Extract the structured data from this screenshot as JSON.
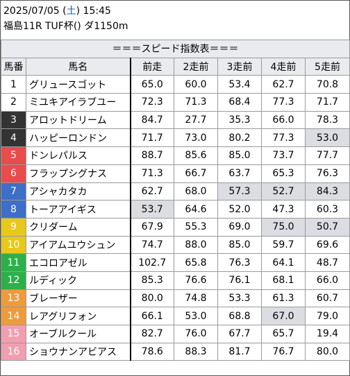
{
  "header": {
    "date": "2025/07/05",
    "weekday": "土",
    "time": "15:45",
    "race_info": "福島11R TUF杯() ダ1150m"
  },
  "table": {
    "title": "＝＝＝スピード指数表＝＝＝",
    "columns": [
      "馬番",
      "馬名",
      "前走",
      "2走前",
      "3走前",
      "4走前",
      "5走前"
    ],
    "rows": [
      {
        "num": "1",
        "name": "グリュースゴット",
        "values": [
          "65.0",
          "60.0",
          "53.4",
          "62.7",
          "70.8"
        ],
        "highlight": [],
        "color": "white"
      },
      {
        "num": "2",
        "name": "ミユキアイラブユー",
        "values": [
          "72.3",
          "71.3",
          "68.4",
          "77.3",
          "71.7"
        ],
        "highlight": [],
        "color": "white"
      },
      {
        "num": "3",
        "name": "アロットドリーム",
        "values": [
          "84.7",
          "27.7",
          "35.3",
          "66.0",
          "78.3"
        ],
        "highlight": [],
        "color": "black"
      },
      {
        "num": "4",
        "name": "ハッピーロンドン",
        "values": [
          "71.7",
          "73.0",
          "80.2",
          "77.3",
          "53.0"
        ],
        "highlight": [
          4
        ],
        "color": "black"
      },
      {
        "num": "5",
        "name": "ドンレパルス",
        "values": [
          "88.7",
          "85.6",
          "85.0",
          "73.7",
          "77.7"
        ],
        "highlight": [],
        "color": "red"
      },
      {
        "num": "6",
        "name": "フラップシグナス",
        "values": [
          "71.3",
          "66.7",
          "63.7",
          "65.3",
          "76.3"
        ],
        "highlight": [],
        "color": "red"
      },
      {
        "num": "7",
        "name": "アシャカタカ",
        "values": [
          "62.7",
          "68.0",
          "57.3",
          "52.7",
          "84.3"
        ],
        "highlight": [
          2,
          3,
          4
        ],
        "color": "blue"
      },
      {
        "num": "8",
        "name": "トーアアイギス",
        "values": [
          "53.7",
          "64.6",
          "52.0",
          "47.3",
          "60.3"
        ],
        "highlight": [
          0
        ],
        "color": "blue"
      },
      {
        "num": "9",
        "name": "クリダーム",
        "values": [
          "67.9",
          "55.3",
          "69.0",
          "75.0",
          "50.7"
        ],
        "highlight": [
          3,
          4
        ],
        "color": "yellow"
      },
      {
        "num": "10",
        "name": "アイアムユウシュン",
        "values": [
          "74.7",
          "88.0",
          "85.0",
          "59.7",
          "69.6"
        ],
        "highlight": [],
        "color": "yellow"
      },
      {
        "num": "11",
        "name": "エコロアゼル",
        "values": [
          "102.7",
          "65.8",
          "76.3",
          "64.1",
          "48.7"
        ],
        "highlight": [],
        "color": "green"
      },
      {
        "num": "12",
        "name": "ルディック",
        "values": [
          "85.3",
          "76.6",
          "76.1",
          "68.1",
          "66.0"
        ],
        "highlight": [],
        "color": "green"
      },
      {
        "num": "13",
        "name": "ブレーザー",
        "values": [
          "80.0",
          "74.8",
          "53.3",
          "61.3",
          "60.7"
        ],
        "highlight": [],
        "color": "orange"
      },
      {
        "num": "14",
        "name": "レアグリフォン",
        "values": [
          "66.1",
          "53.0",
          "68.8",
          "67.0",
          "79.0"
        ],
        "highlight": [
          3
        ],
        "color": "orange"
      },
      {
        "num": "15",
        "name": "オーブルクール",
        "values": [
          "82.7",
          "76.0",
          "67.7",
          "65.7",
          "19.4"
        ],
        "highlight": [],
        "color": "pink"
      },
      {
        "num": "16",
        "name": "ショウナンアビアス",
        "values": [
          "78.6",
          "88.3",
          "81.7",
          "76.7",
          "80.0"
        ],
        "highlight": [],
        "color": "pink"
      }
    ]
  }
}
